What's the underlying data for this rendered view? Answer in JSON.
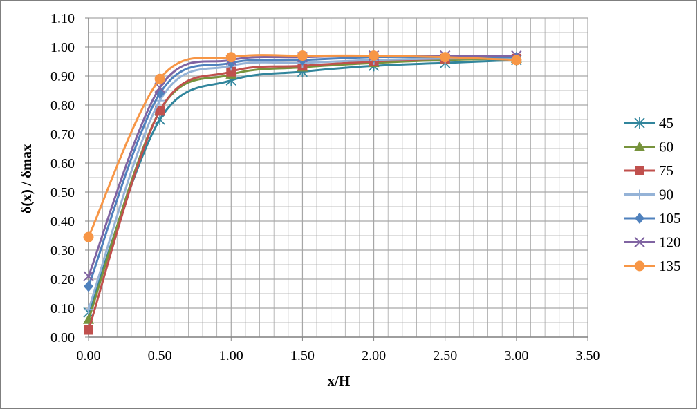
{
  "chart_data": {
    "type": "line",
    "title": "",
    "xlabel": "x/H",
    "ylabel": "δ(x) / δmax",
    "xlim": [
      0,
      3.5
    ],
    "ylim": [
      0,
      1.1
    ],
    "x_ticks": [
      "0.00",
      "0.50",
      "1.00",
      "1.50",
      "2.00",
      "2.50",
      "3.00",
      "3.50"
    ],
    "y_ticks": [
      "0.00",
      "0.10",
      "0.20",
      "0.30",
      "0.40",
      "0.50",
      "0.60",
      "0.70",
      "0.80",
      "0.90",
      "1.00",
      "1.10"
    ],
    "x_minor_step": 0.1,
    "y_minor_step": 0.05,
    "grid": true,
    "smooth": true,
    "legend_position": "right",
    "x": [
      0,
      0.5,
      1.0,
      1.5,
      2.0,
      2.5,
      3.0
    ],
    "series": [
      {
        "name": "45",
        "marker": "asterisk",
        "color": "#31859c",
        "values": [
          0.085,
          0.75,
          0.885,
          0.915,
          0.935,
          0.945,
          0.955
        ]
      },
      {
        "name": "60",
        "marker": "triangle",
        "color": "#77933c",
        "values": [
          0.06,
          0.78,
          0.905,
          0.93,
          0.945,
          0.955,
          0.96
        ]
      },
      {
        "name": "75",
        "marker": "square",
        "color": "#c0504d",
        "values": [
          0.025,
          0.78,
          0.915,
          0.935,
          0.95,
          0.96,
          0.96
        ]
      },
      {
        "name": "90",
        "marker": "plus",
        "color": "#95b3d7",
        "values": [
          0.095,
          0.815,
          0.935,
          0.945,
          0.955,
          0.96,
          0.96
        ]
      },
      {
        "name": "105",
        "marker": "diamond",
        "color": "#4f81bd",
        "values": [
          0.175,
          0.84,
          0.945,
          0.955,
          0.965,
          0.965,
          0.965
        ]
      },
      {
        "name": "120",
        "marker": "cross",
        "color": "#8064a2",
        "values": [
          0.21,
          0.86,
          0.955,
          0.965,
          0.97,
          0.97,
          0.97
        ]
      },
      {
        "name": "135",
        "marker": "circle",
        "color": "#f79646",
        "values": [
          0.345,
          0.89,
          0.965,
          0.97,
          0.97,
          0.965,
          0.955
        ]
      }
    ]
  },
  "colors": {
    "grid": "#a6a6a6",
    "frame": "#7f7f7f",
    "axis": "#868686"
  }
}
